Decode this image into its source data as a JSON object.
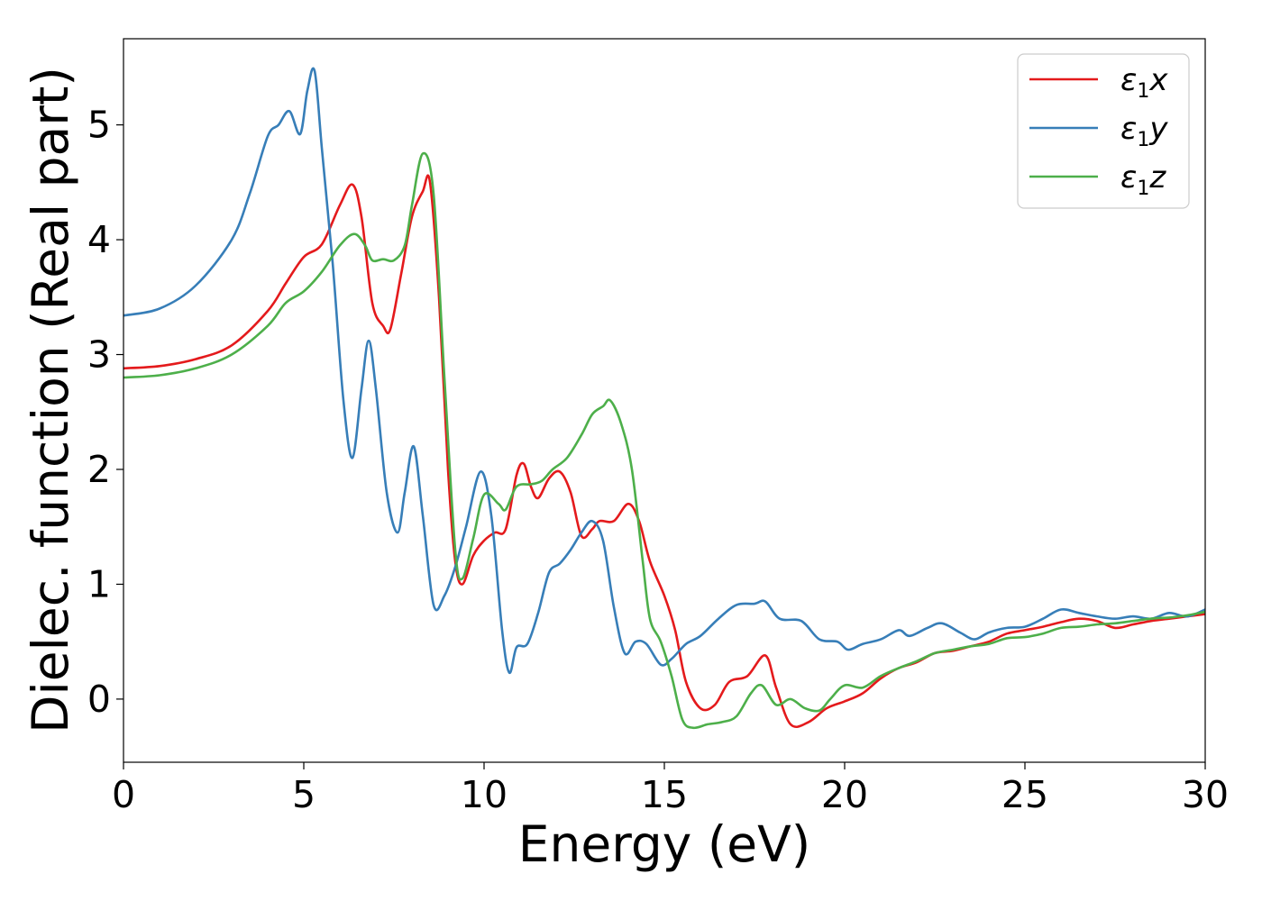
{
  "chart_data": {
    "type": "line",
    "title": "",
    "xlabel": "Energy (eV)",
    "ylabel": "Dielec. function (Real part)",
    "xlim": [
      0,
      30
    ],
    "ylim": [
      -0.55,
      5.75
    ],
    "xticks": [
      0,
      5,
      10,
      15,
      20,
      25,
      30
    ],
    "yticks": [
      0,
      1,
      2,
      3,
      4,
      5
    ],
    "grid": false,
    "legend_position": "top-right",
    "series": [
      {
        "name": "ε1x",
        "symbol": "ε",
        "subscript": "1",
        "suffix": "x",
        "color": "#e41a1c",
        "points": [
          [
            0,
            2.88
          ],
          [
            1,
            2.9
          ],
          [
            2,
            2.96
          ],
          [
            3,
            3.08
          ],
          [
            4,
            3.38
          ],
          [
            4.5,
            3.62
          ],
          [
            5,
            3.85
          ],
          [
            5.5,
            3.96
          ],
          [
            6,
            4.3
          ],
          [
            6.35,
            4.48
          ],
          [
            6.6,
            4.2
          ],
          [
            6.9,
            3.45
          ],
          [
            7.2,
            3.25
          ],
          [
            7.4,
            3.22
          ],
          [
            7.7,
            3.7
          ],
          [
            8.0,
            4.2
          ],
          [
            8.3,
            4.42
          ],
          [
            8.5,
            4.5
          ],
          [
            8.75,
            3.5
          ],
          [
            9.0,
            2.0
          ],
          [
            9.2,
            1.2
          ],
          [
            9.4,
            1.0
          ],
          [
            9.7,
            1.25
          ],
          [
            10.0,
            1.38
          ],
          [
            10.3,
            1.45
          ],
          [
            10.6,
            1.48
          ],
          [
            10.9,
            1.95
          ],
          [
            11.1,
            2.05
          ],
          [
            11.3,
            1.85
          ],
          [
            11.5,
            1.75
          ],
          [
            11.8,
            1.92
          ],
          [
            12.1,
            1.98
          ],
          [
            12.4,
            1.8
          ],
          [
            12.7,
            1.42
          ],
          [
            13.0,
            1.48
          ],
          [
            13.2,
            1.55
          ],
          [
            13.6,
            1.55
          ],
          [
            14.0,
            1.7
          ],
          [
            14.3,
            1.55
          ],
          [
            14.6,
            1.2
          ],
          [
            15.0,
            0.9
          ],
          [
            15.3,
            0.6
          ],
          [
            15.6,
            0.15
          ],
          [
            16.0,
            -0.08
          ],
          [
            16.4,
            -0.05
          ],
          [
            16.8,
            0.15
          ],
          [
            17.3,
            0.2
          ],
          [
            17.8,
            0.38
          ],
          [
            18.1,
            0.1
          ],
          [
            18.5,
            -0.22
          ],
          [
            19.0,
            -0.2
          ],
          [
            19.5,
            -0.08
          ],
          [
            20.0,
            -0.02
          ],
          [
            20.5,
            0.05
          ],
          [
            21.0,
            0.18
          ],
          [
            21.5,
            0.27
          ],
          [
            22.0,
            0.32
          ],
          [
            22.5,
            0.4
          ],
          [
            23.0,
            0.42
          ],
          [
            23.5,
            0.46
          ],
          [
            24.0,
            0.5
          ],
          [
            24.5,
            0.57
          ],
          [
            25.0,
            0.6
          ],
          [
            25.5,
            0.63
          ],
          [
            26.0,
            0.67
          ],
          [
            26.5,
            0.7
          ],
          [
            27.0,
            0.68
          ],
          [
            27.5,
            0.62
          ],
          [
            28.0,
            0.65
          ],
          [
            28.5,
            0.68
          ],
          [
            29.0,
            0.7
          ],
          [
            29.5,
            0.72
          ],
          [
            30.0,
            0.74
          ]
        ]
      },
      {
        "name": "ε1y",
        "symbol": "ε",
        "subscript": "1",
        "suffix": "y",
        "color": "#377eb8",
        "points": [
          [
            0,
            3.34
          ],
          [
            1,
            3.4
          ],
          [
            2,
            3.6
          ],
          [
            3,
            4.0
          ],
          [
            3.5,
            4.4
          ],
          [
            4.0,
            4.9
          ],
          [
            4.3,
            5.0
          ],
          [
            4.6,
            5.12
          ],
          [
            4.9,
            4.92
          ],
          [
            5.1,
            5.3
          ],
          [
            5.3,
            5.47
          ],
          [
            5.5,
            4.8
          ],
          [
            5.8,
            3.8
          ],
          [
            6.1,
            2.6
          ],
          [
            6.35,
            2.1
          ],
          [
            6.6,
            2.7
          ],
          [
            6.8,
            3.12
          ],
          [
            7.0,
            2.7
          ],
          [
            7.3,
            1.8
          ],
          [
            7.6,
            1.45
          ],
          [
            7.8,
            1.8
          ],
          [
            8.05,
            2.2
          ],
          [
            8.3,
            1.6
          ],
          [
            8.6,
            0.82
          ],
          [
            8.9,
            0.9
          ],
          [
            9.2,
            1.15
          ],
          [
            9.5,
            1.5
          ],
          [
            9.9,
            1.98
          ],
          [
            10.2,
            1.6
          ],
          [
            10.5,
            0.6
          ],
          [
            10.7,
            0.23
          ],
          [
            10.9,
            0.45
          ],
          [
            11.2,
            0.48
          ],
          [
            11.5,
            0.75
          ],
          [
            11.8,
            1.1
          ],
          [
            12.1,
            1.18
          ],
          [
            12.4,
            1.3
          ],
          [
            12.7,
            1.45
          ],
          [
            13.0,
            1.55
          ],
          [
            13.3,
            1.38
          ],
          [
            13.6,
            0.8
          ],
          [
            13.9,
            0.4
          ],
          [
            14.2,
            0.5
          ],
          [
            14.5,
            0.48
          ],
          [
            14.9,
            0.3
          ],
          [
            15.2,
            0.35
          ],
          [
            15.6,
            0.48
          ],
          [
            16.0,
            0.55
          ],
          [
            16.5,
            0.7
          ],
          [
            17.0,
            0.82
          ],
          [
            17.5,
            0.83
          ],
          [
            17.8,
            0.85
          ],
          [
            18.2,
            0.7
          ],
          [
            18.8,
            0.68
          ],
          [
            19.3,
            0.52
          ],
          [
            19.8,
            0.5
          ],
          [
            20.1,
            0.43
          ],
          [
            20.5,
            0.48
          ],
          [
            21.0,
            0.52
          ],
          [
            21.5,
            0.6
          ],
          [
            21.8,
            0.55
          ],
          [
            22.3,
            0.62
          ],
          [
            22.7,
            0.66
          ],
          [
            23.2,
            0.58
          ],
          [
            23.6,
            0.52
          ],
          [
            24.0,
            0.58
          ],
          [
            24.5,
            0.62
          ],
          [
            25.0,
            0.63
          ],
          [
            25.5,
            0.7
          ],
          [
            26.0,
            0.78
          ],
          [
            26.5,
            0.75
          ],
          [
            27.0,
            0.72
          ],
          [
            27.5,
            0.7
          ],
          [
            28.0,
            0.72
          ],
          [
            28.5,
            0.7
          ],
          [
            29.0,
            0.75
          ],
          [
            29.5,
            0.72
          ],
          [
            30.0,
            0.78
          ]
        ]
      },
      {
        "name": "ε1z",
        "symbol": "ε",
        "subscript": "1",
        "suffix": "z",
        "color": "#4daf4a",
        "points": [
          [
            0,
            2.8
          ],
          [
            1,
            2.82
          ],
          [
            2,
            2.88
          ],
          [
            3,
            3.0
          ],
          [
            4,
            3.25
          ],
          [
            4.5,
            3.45
          ],
          [
            5,
            3.55
          ],
          [
            5.5,
            3.72
          ],
          [
            6.0,
            3.95
          ],
          [
            6.4,
            4.05
          ],
          [
            6.7,
            3.95
          ],
          [
            6.9,
            3.82
          ],
          [
            7.2,
            3.83
          ],
          [
            7.5,
            3.82
          ],
          [
            7.8,
            3.95
          ],
          [
            8.0,
            4.3
          ],
          [
            8.3,
            4.75
          ],
          [
            8.6,
            4.4
          ],
          [
            8.9,
            2.8
          ],
          [
            9.2,
            1.3
          ],
          [
            9.4,
            1.05
          ],
          [
            9.7,
            1.4
          ],
          [
            10.0,
            1.78
          ],
          [
            10.4,
            1.7
          ],
          [
            10.6,
            1.65
          ],
          [
            10.9,
            1.85
          ],
          [
            11.3,
            1.87
          ],
          [
            11.6,
            1.9
          ],
          [
            11.9,
            2.0
          ],
          [
            12.3,
            2.1
          ],
          [
            12.7,
            2.3
          ],
          [
            13.0,
            2.48
          ],
          [
            13.3,
            2.55
          ],
          [
            13.5,
            2.6
          ],
          [
            13.8,
            2.4
          ],
          [
            14.1,
            2.0
          ],
          [
            14.4,
            1.2
          ],
          [
            14.6,
            0.7
          ],
          [
            14.9,
            0.5
          ],
          [
            15.2,
            0.2
          ],
          [
            15.5,
            -0.18
          ],
          [
            15.8,
            -0.25
          ],
          [
            16.2,
            -0.22
          ],
          [
            16.6,
            -0.2
          ],
          [
            17.0,
            -0.15
          ],
          [
            17.4,
            0.05
          ],
          [
            17.7,
            0.12
          ],
          [
            18.1,
            -0.05
          ],
          [
            18.5,
            0.0
          ],
          [
            18.9,
            -0.08
          ],
          [
            19.3,
            -0.1
          ],
          [
            19.6,
            0.0
          ],
          [
            20.0,
            0.12
          ],
          [
            20.5,
            0.1
          ],
          [
            21.0,
            0.2
          ],
          [
            21.5,
            0.27
          ],
          [
            22.0,
            0.33
          ],
          [
            22.5,
            0.4
          ],
          [
            23.0,
            0.43
          ],
          [
            23.5,
            0.46
          ],
          [
            24.0,
            0.48
          ],
          [
            24.5,
            0.53
          ],
          [
            25.0,
            0.54
          ],
          [
            25.5,
            0.57
          ],
          [
            26.0,
            0.62
          ],
          [
            26.5,
            0.63
          ],
          [
            27.0,
            0.65
          ],
          [
            27.5,
            0.66
          ],
          [
            28.0,
            0.68
          ],
          [
            28.5,
            0.7
          ],
          [
            29.0,
            0.71
          ],
          [
            29.5,
            0.73
          ],
          [
            30.0,
            0.76
          ]
        ]
      }
    ]
  }
}
